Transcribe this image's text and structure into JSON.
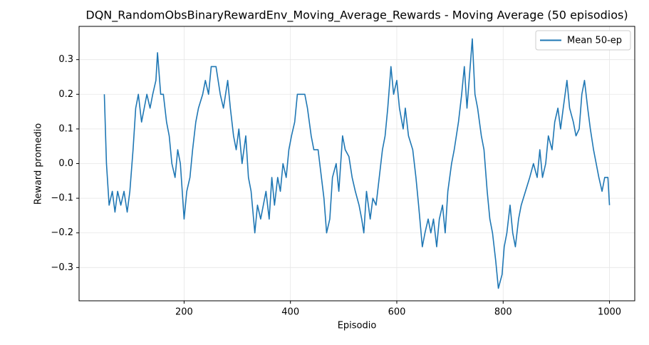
{
  "chart_data": {
    "type": "line",
    "title": "DQN_RandomObsBinaryRewardEnv_Moving_Average_Rewards - Moving Average (50 episodios)",
    "x_label": "Episodio",
    "y_label": "Reward promedio",
    "xlim": [
      2.5,
      1047.5
    ],
    "xticks": [
      200,
      400,
      600,
      800,
      1000
    ],
    "ylim": [
      -0.396,
      0.396
    ],
    "yticks": [
      {
        "value": -0.3,
        "label": "−0.3"
      },
      {
        "value": -0.2,
        "label": "−0.2"
      },
      {
        "value": -0.1,
        "label": "−0.1"
      },
      {
        "value": 0,
        "label": "0.0"
      },
      0.1,
      0.2,
      0.3
    ],
    "grid": true,
    "legend": "upper right",
    "x": [
      50,
      54,
      59,
      65,
      70,
      75,
      81,
      87,
      93,
      98,
      104,
      109,
      114,
      120,
      125,
      130,
      136,
      141,
      147,
      150,
      156,
      161,
      167,
      172,
      177,
      183,
      188,
      193,
      200,
      205,
      211,
      216,
      222,
      227,
      235,
      240,
      246,
      251,
      260,
      268,
      274,
      282,
      287,
      293,
      298,
      303,
      309,
      316,
      321,
      326,
      333,
      338,
      344,
      349,
      354,
      360,
      365,
      370,
      376,
      381,
      386,
      392,
      397,
      402,
      408,
      413,
      427,
      432,
      439,
      444,
      452,
      463,
      468,
      474,
      479,
      486,
      491,
      498,
      503,
      510,
      516,
      522,
      529,
      534,
      538,
      543,
      550,
      555,
      561,
      567,
      573,
      578,
      583,
      589,
      594,
      600,
      605,
      612,
      616,
      622,
      630,
      636,
      641,
      648,
      653,
      659,
      664,
      669,
      675,
      680,
      686,
      691,
      696,
      703,
      708,
      716,
      722,
      727,
      732,
      738,
      742,
      747,
      752,
      759,
      764,
      770,
      775,
      780,
      786,
      791,
      798,
      802,
      807,
      813,
      818,
      823,
      829,
      834,
      842,
      850,
      857,
      864,
      869,
      874,
      880,
      885,
      892,
      897,
      903,
      908,
      913,
      920,
      925,
      932,
      937,
      943,
      948,
      953,
      959,
      964,
      970,
      975,
      980,
      986,
      991,
      997,
      1000
    ],
    "series": [
      {
        "name": "Mean 50-ep",
        "color": "#1f77b4",
        "values": [
          0.2,
          0,
          -0.12,
          -0.08,
          -0.14,
          -0.08,
          -0.12,
          -0.08,
          -0.14,
          -0.08,
          0.04,
          0.16,
          0.2,
          0.12,
          0.16,
          0.2,
          0.16,
          0.2,
          0.24,
          0.32,
          0.2,
          0.2,
          0.12,
          0.08,
          0,
          -0.04,
          0.04,
          0,
          -0.16,
          -0.08,
          -0.04,
          0.04,
          0.12,
          0.16,
          0.2,
          0.24,
          0.2,
          0.28,
          0.28,
          0.2,
          0.16,
          0.24,
          0.16,
          0.08,
          0.04,
          0.1,
          0,
          0.08,
          -0.04,
          -0.08,
          -0.2,
          -0.12,
          -0.16,
          -0.12,
          -0.08,
          -0.16,
          -0.04,
          -0.12,
          -0.04,
          -0.08,
          0,
          -0.04,
          0.04,
          0.08,
          0.12,
          0.2,
          0.2,
          0.16,
          0.08,
          0.04,
          0.04,
          -0.1,
          -0.2,
          -0.16,
          -0.04,
          0,
          -0.08,
          0.08,
          0.04,
          0.02,
          -0.04,
          -0.08,
          -0.12,
          -0.16,
          -0.2,
          -0.08,
          -0.16,
          -0.1,
          -0.12,
          -0.04,
          0.04,
          0.08,
          0.16,
          0.28,
          0.2,
          0.24,
          0.16,
          0.1,
          0.16,
          0.08,
          0.04,
          -0.04,
          -0.12,
          -0.24,
          -0.2,
          -0.16,
          -0.2,
          -0.16,
          -0.24,
          -0.16,
          -0.12,
          -0.2,
          -0.08,
          0,
          0.04,
          0.12,
          0.2,
          0.28,
          0.16,
          0.28,
          0.36,
          0.2,
          0.16,
          0.08,
          0.04,
          -0.08,
          -0.16,
          -0.2,
          -0.28,
          -0.36,
          -0.32,
          -0.24,
          -0.2,
          -0.12,
          -0.2,
          -0.24,
          -0.16,
          -0.12,
          -0.08,
          -0.04,
          0,
          -0.04,
          0.04,
          -0.04,
          0,
          0.08,
          0.04,
          0.12,
          0.16,
          0.1,
          0.16,
          0.24,
          0.16,
          0.12,
          0.08,
          0.1,
          0.2,
          0.24,
          0.16,
          0.1,
          0.04,
          0,
          -0.04,
          -0.08,
          -0.04,
          -0.04,
          -0.12
        ]
      }
    ]
  }
}
